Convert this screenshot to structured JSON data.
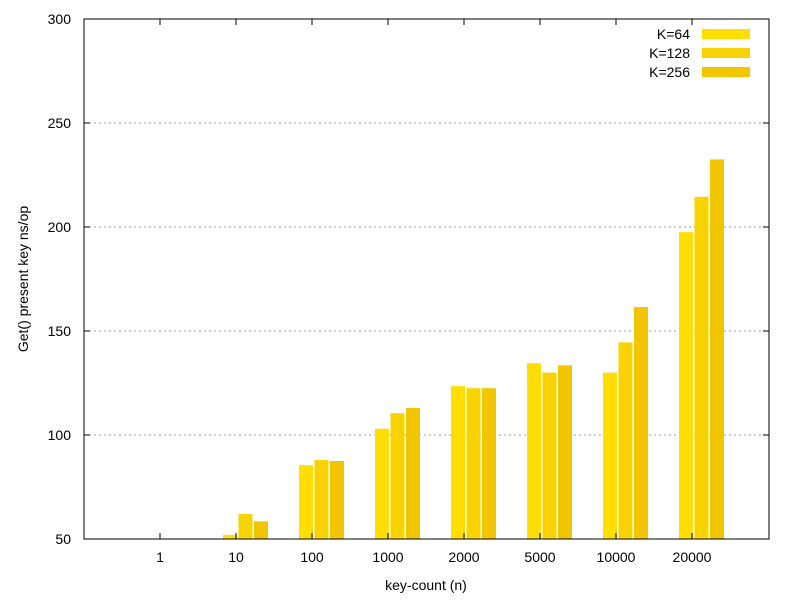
{
  "chart_data": {
    "type": "bar",
    "title": "",
    "xlabel": "key-count (n)",
    "ylabel": "Get() present key ns/op",
    "ylim": [
      50,
      300
    ],
    "yticks": [
      50,
      100,
      150,
      200,
      250,
      300
    ],
    "grid": true,
    "legend_position": "top-right",
    "categories": [
      "1",
      "10",
      "100",
      "1000",
      "2000",
      "5000",
      "10000",
      "20000"
    ],
    "series": [
      {
        "name": "K=64",
        "color": "#ffde00",
        "values": [
          null,
          52,
          85.5,
          103,
          123.5,
          134.5,
          130,
          197.5
        ]
      },
      {
        "name": "K=128",
        "color": "#f9d300",
        "values": [
          null,
          62,
          88,
          110.5,
          122.5,
          130,
          144.5,
          214.5
        ]
      },
      {
        "name": "K=256",
        "color": "#f1c500",
        "values": [
          null,
          58.5,
          87.5,
          113,
          122.5,
          133.5,
          161.5,
          232.5
        ]
      }
    ]
  }
}
